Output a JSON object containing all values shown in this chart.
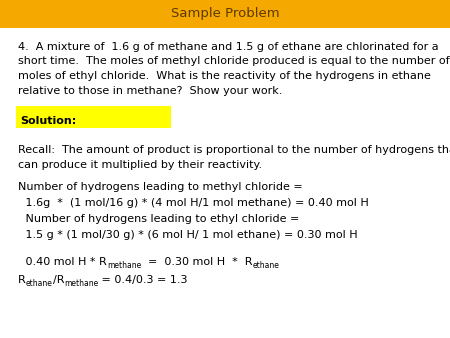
{
  "title": "Sample Problem",
  "title_bg": "#F5A800",
  "title_color": "#5C3A00",
  "bg_color": "#FFFFFF",
  "problem_text_l1": "4.  A mixture of  1.6 g of methane and 1.5 g of ethane are chlorinated for a",
  "problem_text_l2": "short time.  The moles of methyl chloride produced is equal to the number of",
  "problem_text_l3": "moles of ethyl chloride.  What is the reactivity of the hydrogens in ethane",
  "problem_text_l4": "relative to those in methane?  Show your work.",
  "solution_label": "Solution:",
  "solution_bg": "#FFFF00",
  "recall_l1": "Recall:  The amount of product is proportional to the number of hydrogens that",
  "recall_l2": "can produce it multiplied by their reactivity.",
  "line1": "Number of hydrogens leading to methyl chloride =",
  "line2": " 1.6g  *  (1 mol/16 g) * (4 mol H/1 mol methane) = 0.40 mol H",
  "line3": " Number of hydrogens leading to ethyl chloride =",
  "line4": " 1.5 g * (1 mol/30 g) * (6 mol H/ 1 mol ethane) = 0.30 mol H",
  "line5a": " 0.40 mol H * R",
  "line5b": "methane",
  "line5c": "  =  0.30 mol H  *  R",
  "line5d": "ethane",
  "line6a": "R",
  "line6b": "ethane",
  "line6c": "/R",
  "line6d": "methane",
  "line6e": " = 0.4/0.3 = 1.3",
  "fs": 8.0,
  "fs_sub": 5.5
}
